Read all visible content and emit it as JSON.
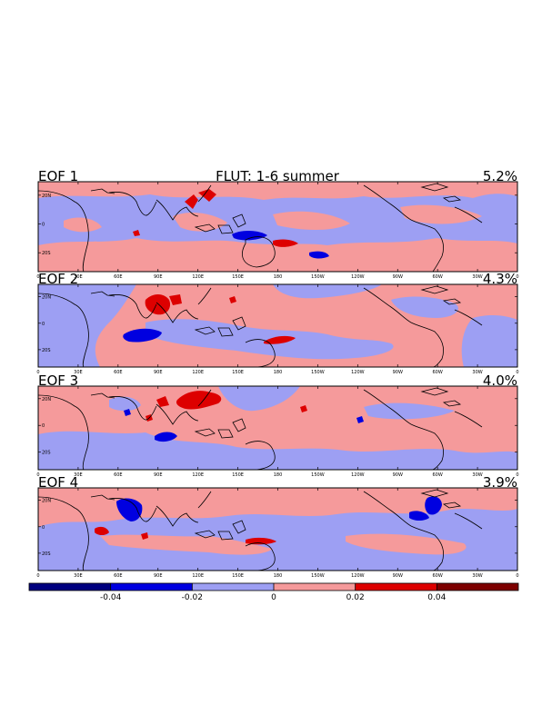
{
  "chart_data": {
    "type": "heatmap",
    "title": "FLUT: 1-6 summer",
    "x_tick_labels": [
      "0",
      "30E",
      "60E",
      "90E",
      "120E",
      "150E",
      "180",
      "150W",
      "120W",
      "90W",
      "60W",
      "30W",
      "0"
    ],
    "y_tick_labels": [
      "20N",
      "0",
      "20S"
    ],
    "panels": [
      {
        "label": "EOF 1",
        "variance": "5.2%"
      },
      {
        "label": "EOF 2",
        "variance": "4.3%"
      },
      {
        "label": "EOF 3",
        "variance": "4.0%"
      },
      {
        "label": "EOF 4",
        "variance": "3.9%"
      }
    ],
    "colorbar": {
      "levels": [
        -0.06,
        -0.04,
        -0.02,
        0,
        0.02,
        0.04,
        0.06
      ],
      "tick_labels": [
        "-0.04",
        "-0.02",
        "0",
        "0.02",
        "0.04"
      ],
      "colors": [
        "#00007f",
        "#0000e0",
        "#9d9ff3",
        "#f59a9b",
        "#dd0000",
        "#7d0000"
      ]
    }
  }
}
